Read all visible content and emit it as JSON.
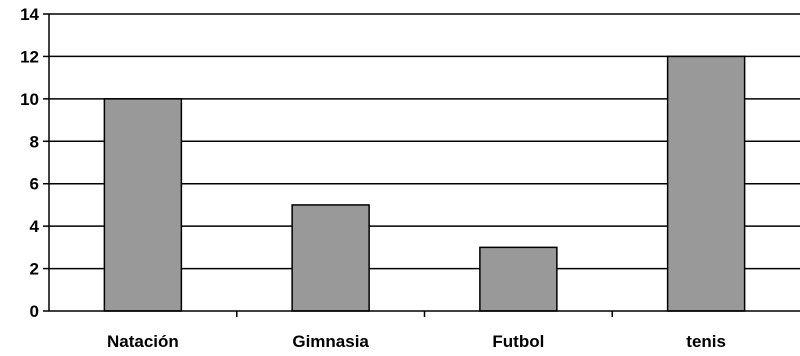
{
  "chart_data": {
    "type": "bar",
    "categories": [
      "Natación",
      "Gimnasia",
      "Futbol",
      "tenis"
    ],
    "values": [
      10,
      5,
      3,
      12
    ],
    "ylim": [
      0,
      14
    ],
    "yticks": [
      0,
      2,
      4,
      6,
      8,
      10,
      12,
      14
    ],
    "grid": true,
    "legend": "none",
    "colors": {
      "bar_fill": "#999999",
      "bar_stroke": "#000000",
      "grid": "#000000",
      "axis": "#000000"
    }
  }
}
